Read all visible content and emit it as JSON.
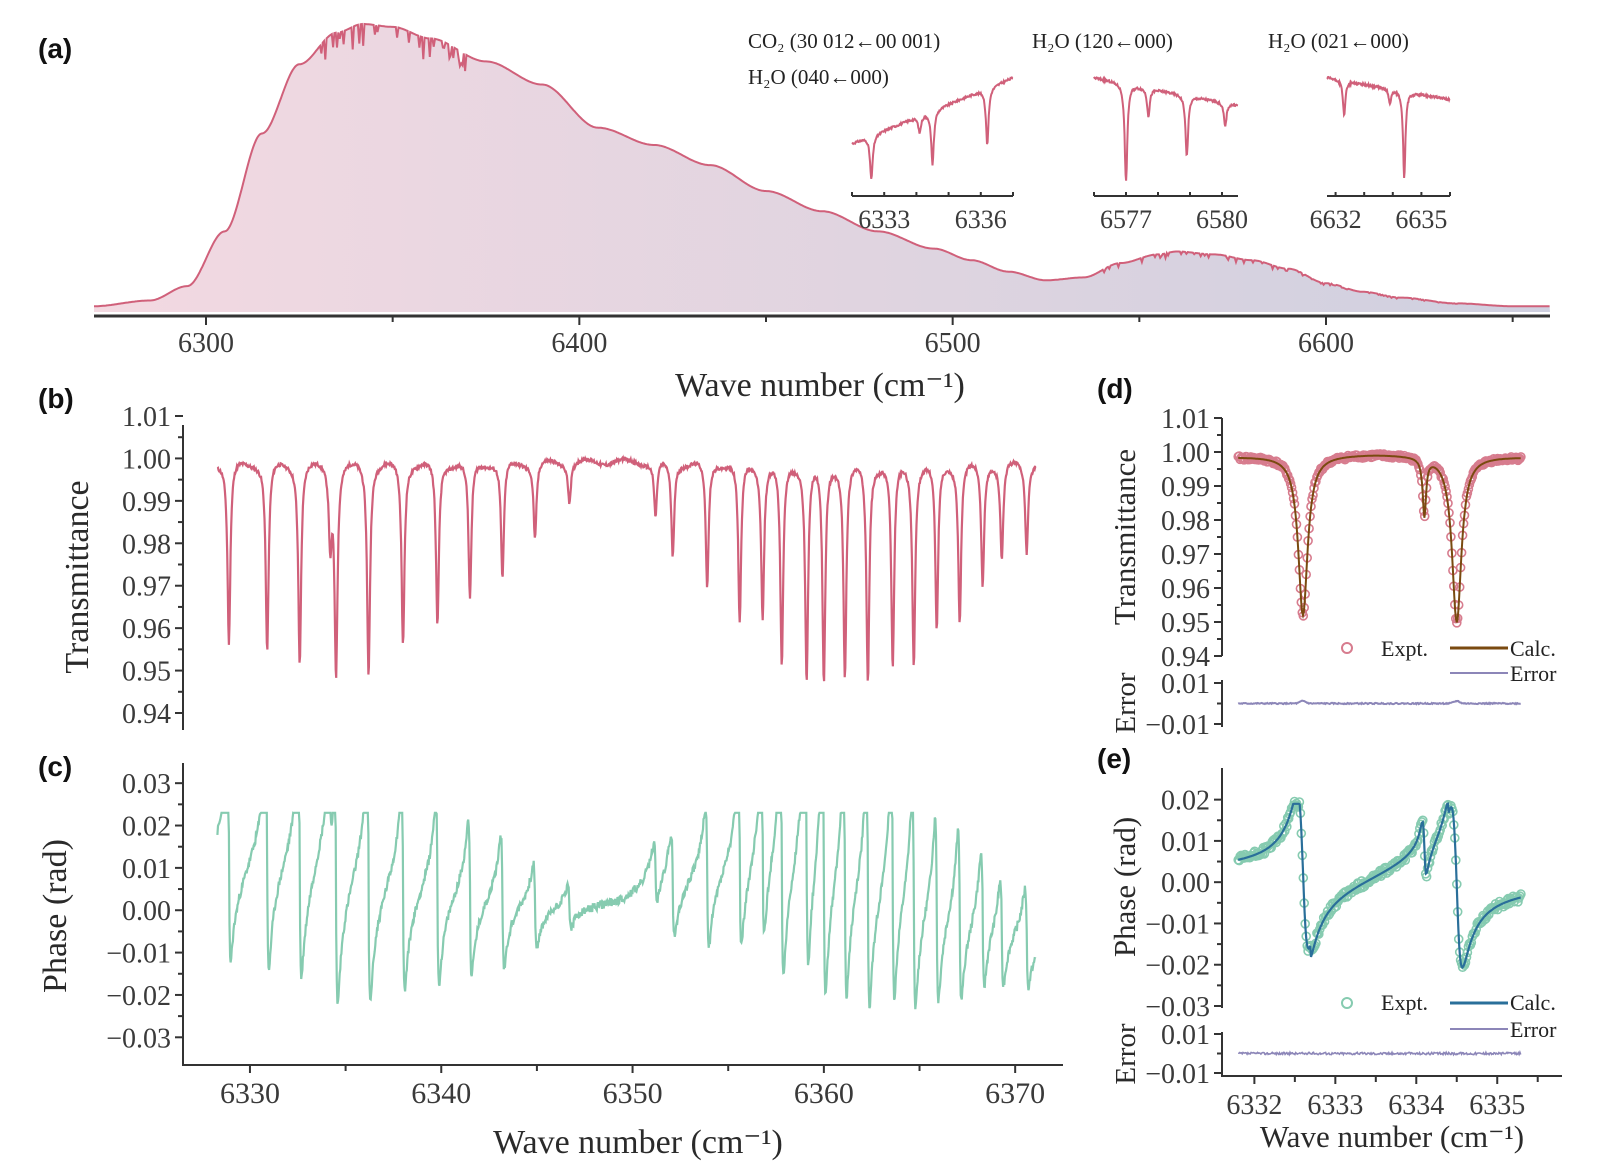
{
  "colors": {
    "transmittance": "#d0607a",
    "phase": "#86cbb0",
    "calc_d": "#7a4a10",
    "calc_e": "#2a6f9a",
    "error": "#8c86b8",
    "expt_d": "#d77c8e",
    "expt_e": "#86cbb0",
    "fill_left": "#f3d9e1",
    "fill_right": "#cfd0e0"
  },
  "chart_data": [
    {
      "id": "a",
      "panel_label": "(a)",
      "type": "area",
      "title": "",
      "xlabel": "Wave number (cm⁻¹)",
      "ylabel": "",
      "xlim": [
        6270,
        6660
      ],
      "xticks": [
        6300,
        6400,
        6500,
        6600
      ],
      "xtick_labels": [
        "6300",
        "6400",
        "6500",
        "6600"
      ],
      "minor_xticks": [
        6350,
        6450,
        6550,
        6650
      ],
      "grid": false,
      "envelope_relative": {
        "x": [
          6270,
          6285,
          6295,
          6305,
          6315,
          6325,
          6335,
          6342,
          6350,
          6360,
          6375,
          6390,
          6405,
          6420,
          6435,
          6450,
          6465,
          6480,
          6495,
          6505,
          6515,
          6525,
          6535,
          6545,
          6555,
          6560,
          6570,
          6580,
          6590,
          6600,
          6610,
          6620,
          6635,
          6650,
          6660
        ],
        "y": [
          0.02,
          0.04,
          0.09,
          0.28,
          0.62,
          0.86,
          0.97,
          1.0,
          0.99,
          0.95,
          0.87,
          0.79,
          0.64,
          0.58,
          0.51,
          0.42,
          0.35,
          0.28,
          0.22,
          0.18,
          0.14,
          0.11,
          0.12,
          0.17,
          0.2,
          0.21,
          0.2,
          0.18,
          0.15,
          0.1,
          0.07,
          0.05,
          0.03,
          0.02,
          0.02
        ]
      },
      "insets": [
        {
          "label_lines": [
            "CO₂ (30 012←00 001)",
            "H₂O (040←000)"
          ],
          "xlim": [
            6332.0,
            6337.0
          ],
          "xticks": [
            6333,
            6336
          ],
          "xtick_labels": [
            "6333",
            "6336"
          ],
          "lines": [
            {
              "center": 6332.6,
              "depth": 0.95
            },
            {
              "center": 6334.1,
              "depth": 0.25
            },
            {
              "center": 6334.5,
              "depth": 0.75
            },
            {
              "center": 6336.2,
              "depth": 0.6
            }
          ],
          "baseline_trend": [
            0.35,
            0.95
          ]
        },
        {
          "label_lines": [
            "H₂O (120←000)"
          ],
          "xlim": [
            6576.0,
            6580.5
          ],
          "xticks": [
            6577,
            6580
          ],
          "xtick_labels": [
            "6577",
            "6580"
          ],
          "lines": [
            {
              "center": 6577.0,
              "depth": 1.0
            },
            {
              "center": 6577.7,
              "depth": 0.3
            },
            {
              "center": 6578.9,
              "depth": 0.7
            },
            {
              "center": 6580.1,
              "depth": 0.3
            }
          ],
          "baseline_trend": [
            0.95,
            0.7
          ]
        },
        {
          "label_lines": [
            "H₂O (021←000)"
          ],
          "xlim": [
            6631.7,
            6636.0
          ],
          "xticks": [
            6632,
            6635
          ],
          "xtick_labels": [
            "6632",
            "6635"
          ],
          "lines": [
            {
              "center": 6632.3,
              "depth": 0.35
            },
            {
              "center": 6633.9,
              "depth": 0.15
            },
            {
              "center": 6634.4,
              "depth": 0.95
            }
          ],
          "baseline_trend": [
            0.95,
            0.75
          ]
        }
      ]
    },
    {
      "id": "b",
      "panel_label": "(b)",
      "type": "line",
      "xlabel": "",
      "ylabel": "Transmittance",
      "xlim": [
        6326.5,
        6372.5
      ],
      "ylim": [
        0.94,
        1.01
      ],
      "yticks": [
        0.94,
        0.95,
        0.96,
        0.97,
        0.98,
        0.99,
        1.0,
        1.01
      ],
      "ytick_labels": [
        "0.94",
        "0.95",
        "0.96",
        "0.97",
        "0.98",
        "0.99",
        "1.00",
        "1.01"
      ],
      "grid": false,
      "x_range": [
        6328.3,
        6371.1
      ],
      "lines": [
        {
          "center": 6328.9,
          "min": 0.957
        },
        {
          "center": 6330.9,
          "min": 0.955
        },
        {
          "center": 6332.6,
          "min": 0.953
        },
        {
          "center": 6334.2,
          "min": 0.982
        },
        {
          "center": 6334.5,
          "min": 0.951
        },
        {
          "center": 6336.2,
          "min": 0.95
        },
        {
          "center": 6338.0,
          "min": 0.957
        },
        {
          "center": 6339.8,
          "min": 0.961
        },
        {
          "center": 6341.5,
          "min": 0.967
        },
        {
          "center": 6343.2,
          "min": 0.972
        },
        {
          "center": 6344.9,
          "min": 0.982
        },
        {
          "center": 6346.7,
          "min": 0.991
        },
        {
          "center": 6351.2,
          "min": 0.987
        },
        {
          "center": 6352.1,
          "min": 0.978
        },
        {
          "center": 6353.9,
          "min": 0.97
        },
        {
          "center": 6355.6,
          "min": 0.962
        },
        {
          "center": 6356.8,
          "min": 0.964
        },
        {
          "center": 6357.8,
          "min": 0.952
        },
        {
          "center": 6359.1,
          "min": 0.949
        },
        {
          "center": 6360.0,
          "min": 0.948
        },
        {
          "center": 6361.1,
          "min": 0.95
        },
        {
          "center": 6362.3,
          "min": 0.949
        },
        {
          "center": 6363.6,
          "min": 0.951
        },
        {
          "center": 6364.7,
          "min": 0.953
        },
        {
          "center": 6365.9,
          "min": 0.96
        },
        {
          "center": 6367.1,
          "min": 0.963
        },
        {
          "center": 6368.3,
          "min": 0.971
        },
        {
          "center": 6369.3,
          "min": 0.977
        },
        {
          "center": 6370.6,
          "min": 0.979
        }
      ]
    },
    {
      "id": "c",
      "panel_label": "(c)",
      "type": "line",
      "xlabel": "Wave number (cm⁻¹)",
      "ylabel": "Phase (rad)",
      "xlim": [
        6326.5,
        6372.5
      ],
      "ylim": [
        -0.033,
        0.035
      ],
      "xticks": [
        6330,
        6340,
        6350,
        6360,
        6370
      ],
      "xtick_labels": [
        "6330",
        "6340",
        "6350",
        "6360",
        "6370"
      ],
      "minor_xticks": [
        6335,
        6345,
        6355,
        6365
      ],
      "yticks": [
        -0.03,
        -0.02,
        -0.01,
        0.0,
        0.01,
        0.02,
        0.03
      ],
      "ytick_labels": [
        "−0.03",
        "−0.02",
        "−0.01",
        "0.00",
        "0.01",
        "0.02",
        "0.03"
      ],
      "grid": false
    },
    {
      "id": "d",
      "panel_label": "(d)",
      "type": "scatter+line",
      "ylabel": "Transmittance",
      "error_ylabel": "Error",
      "xlim": [
        6331.6,
        6335.8
      ],
      "ylim": [
        0.94,
        1.01
      ],
      "yticks": [
        0.94,
        0.95,
        0.96,
        0.97,
        0.98,
        0.99,
        1.0,
        1.01
      ],
      "ytick_labels": [
        "0.94",
        "0.95",
        "0.96",
        "0.97",
        "0.98",
        "0.99",
        "1.00",
        "1.01"
      ],
      "error_ylim": [
        -0.01,
        0.01
      ],
      "error_yticks": [
        -0.01,
        0.01
      ],
      "error_ytick_labels": [
        "−0.01",
        "0.01"
      ],
      "x_range": [
        6331.8,
        6335.3
      ],
      "lines": [
        {
          "center": 6332.6,
          "min": 0.953,
          "width": 0.07
        },
        {
          "center": 6334.1,
          "min": 0.983,
          "width": 0.025
        },
        {
          "center": 6334.5,
          "min": 0.951,
          "width": 0.07
        }
      ],
      "legend": {
        "expt": "Expt.",
        "calc": "Calc.",
        "error": "Error",
        "position": "bottom-right"
      }
    },
    {
      "id": "e",
      "panel_label": "(e)",
      "type": "scatter+line",
      "xlabel": "Wave number (cm⁻¹)",
      "ylabel": "Phase (rad)",
      "error_ylabel": "Error",
      "xlim": [
        6331.6,
        6335.8
      ],
      "ylim": [
        -0.03,
        0.025
      ],
      "xticks": [
        6332,
        6333,
        6334,
        6335
      ],
      "xtick_labels": [
        "6332",
        "6333",
        "6334",
        "6335"
      ],
      "minor_xticks": [
        6332.5,
        6333.5,
        6334.5,
        6335.5
      ],
      "yticks": [
        -0.03,
        -0.02,
        -0.01,
        0.0,
        0.01,
        0.02
      ],
      "ytick_labels": [
        "−0.03",
        "−0.02",
        "−0.01",
        "0.00",
        "0.01",
        "0.02"
      ],
      "error_ylim": [
        -0.01,
        0.01
      ],
      "error_yticks": [
        -0.01,
        0.01
      ],
      "error_ytick_labels": [
        "−0.01",
        "0.01"
      ],
      "x_range": [
        6331.8,
        6335.3
      ],
      "legend": {
        "expt": "Expt.",
        "calc": "Calc.",
        "error": "Error",
        "position": "bottom-right"
      }
    }
  ]
}
